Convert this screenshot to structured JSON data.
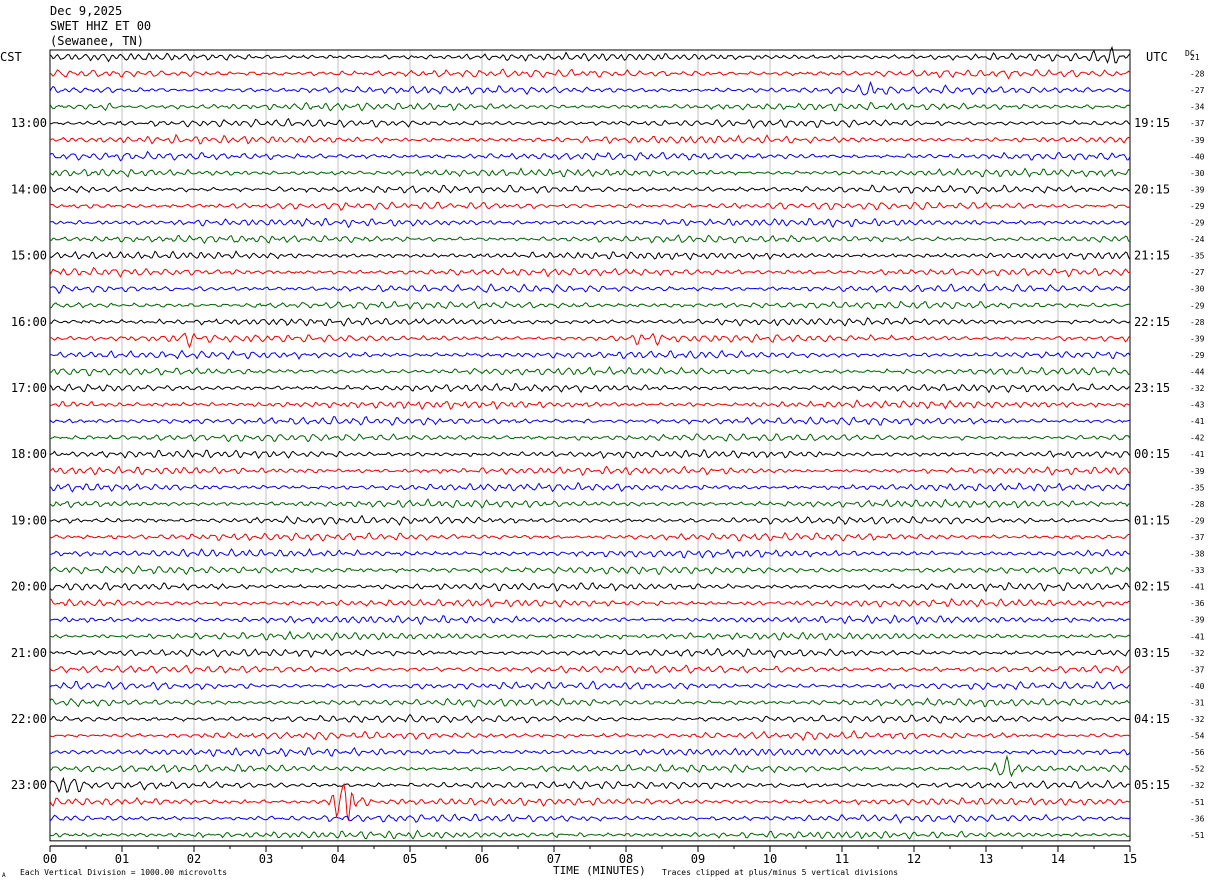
{
  "header": {
    "date": "Dec 9,2025",
    "station": "SWET HHZ ET 00",
    "location": "(Sewanee, TN)"
  },
  "left_timezone": "CST",
  "right_timezone": "UTC",
  "dc_label": "DC",
  "footer": {
    "xlabel": "TIME (MINUTES)",
    "scale_note": "Each Vertical Division = 1000.00 microvolts",
    "clip_note": "Traces clipped at plus/minus 5 vertical divisions",
    "corner_mark": "A"
  },
  "chart_data": {
    "type": "line",
    "xlim": [
      0,
      15
    ],
    "x_ticks": [
      "00",
      "01",
      "02",
      "03",
      "04",
      "05",
      "06",
      "07",
      "08",
      "09",
      "10",
      "11",
      "12",
      "13",
      "14",
      "15"
    ],
    "left_hour_labels": [
      "13:00",
      "14:00",
      "15:00",
      "16:00",
      "17:00",
      "18:00",
      "19:00",
      "20:00",
      "21:00",
      "22:00",
      "23:00"
    ],
    "right_hour_labels": [
      "19:15",
      "20:15",
      "21:15",
      "22:15",
      "23:15",
      "00:15",
      "01:15",
      "02:15",
      "03:15",
      "04:15",
      "05:15"
    ],
    "trace_colors": [
      "#000000",
      "#ee0000",
      "#0000ee",
      "#006400"
    ],
    "trace_count": 48,
    "dc_offsets": [
      "21",
      "-28",
      "-27",
      "-34",
      "-37",
      "-39",
      "-40",
      "-30",
      "-39",
      "-29",
      "-29",
      "-24",
      "-35",
      "-27",
      "-30",
      "-29",
      "-28",
      "-39",
      "-29",
      "-44",
      "-32",
      "-43",
      "-41",
      "-42",
      "-41",
      "-39",
      "-35",
      "-28",
      "-29",
      "-37",
      "-38",
      "-33",
      "-41",
      "-36",
      "-39",
      "-41",
      "-32",
      "-37",
      "-40",
      "-31",
      "-32",
      "-54",
      "-56",
      "-52",
      "-32",
      "-51",
      "-36",
      "-51"
    ],
    "events": [
      {
        "trace": 0,
        "minute": 14.7,
        "amp": 6
      },
      {
        "trace": 2,
        "minute": 11.4,
        "amp": 5
      },
      {
        "trace": 3,
        "minute": 0.7,
        "amp": 3
      },
      {
        "trace": 17,
        "minute": 1.9,
        "amp": 5
      },
      {
        "trace": 17,
        "minute": 8.3,
        "amp": 5
      },
      {
        "trace": 43,
        "minute": 13.3,
        "amp": 9
      },
      {
        "trace": 44,
        "minute": 0.2,
        "amp": 9
      },
      {
        "trace": 45,
        "minute": 4.1,
        "amp": 22
      }
    ]
  }
}
